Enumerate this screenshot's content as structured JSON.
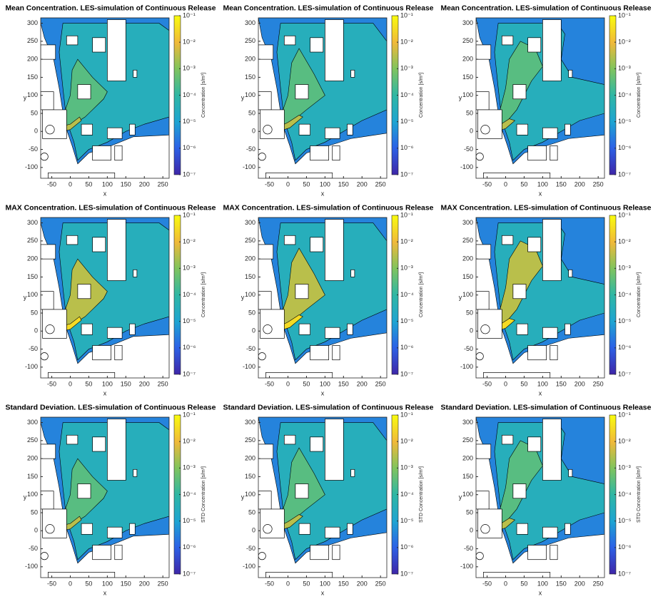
{
  "chart_data": [
    {
      "type": "contour",
      "title": "Mean Concentration. LES-simulation of Continuous Release",
      "xlabel": "x",
      "ylabel": "y",
      "xlim": [
        -80,
        267
      ],
      "ylim": [
        -130,
        315
      ],
      "xticks": [
        -50,
        0,
        50,
        100,
        150,
        200,
        250
      ],
      "yticks": [
        -100,
        -50,
        0,
        50,
        100,
        150,
        200,
        250,
        300
      ],
      "colorbar": {
        "label": "Concentration [s/m³]",
        "lim": [
          1e-07,
          0.1
        ],
        "log": true,
        "ticks": [
          {
            "value": 1e-07,
            "label": "10⁻⁷"
          },
          {
            "value": 1e-06,
            "label": "10⁻⁶"
          },
          {
            "value": 1e-05,
            "label": "10⁻⁵"
          },
          {
            "value": 0.0001,
            "label": "10⁻⁴"
          },
          {
            "value": 0.001,
            "label": "10⁻³"
          },
          {
            "value": 0.01,
            "label": "10⁻²"
          },
          {
            "value": 0.1,
            "label": "10⁻¹"
          }
        ]
      }
    },
    {
      "type": "contour",
      "title": "Mean Concentration. LES-simulation of Continuous Release",
      "xlabel": "x",
      "ylabel": "y",
      "xlim": [
        -80,
        267
      ],
      "ylim": [
        -130,
        315
      ],
      "xticks": [
        -50,
        0,
        50,
        100,
        150,
        200,
        250
      ],
      "yticks": [
        -100,
        -50,
        0,
        50,
        100,
        150,
        200,
        250,
        300
      ],
      "colorbar": {
        "label": "Concentration [s/m³]",
        "lim": [
          1e-07,
          0.1
        ],
        "log": true,
        "ticks": [
          {
            "value": 1e-07,
            "label": "10⁻⁷"
          },
          {
            "value": 1e-06,
            "label": "10⁻⁶"
          },
          {
            "value": 1e-05,
            "label": "10⁻⁵"
          },
          {
            "value": 0.0001,
            "label": "10⁻⁴"
          },
          {
            "value": 0.001,
            "label": "10⁻³"
          },
          {
            "value": 0.01,
            "label": "10⁻²"
          },
          {
            "value": 0.1,
            "label": "10⁻¹"
          }
        ]
      }
    },
    {
      "type": "contour",
      "title": "Mean Concentration. LES-simulation of Continuous Release",
      "xlabel": "x",
      "ylabel": "y",
      "xlim": [
        -80,
        267
      ],
      "ylim": [
        -130,
        315
      ],
      "xticks": [
        -50,
        0,
        50,
        100,
        150,
        200,
        250
      ],
      "yticks": [
        -100,
        -50,
        0,
        50,
        100,
        150,
        200,
        250,
        300
      ],
      "colorbar": {
        "label": "Concentration [s/m³]",
        "lim": [
          1e-07,
          0.1
        ],
        "log": true,
        "ticks": [
          {
            "value": 1e-07,
            "label": "10⁻⁷"
          },
          {
            "value": 1e-06,
            "label": "10⁻⁶"
          },
          {
            "value": 1e-05,
            "label": "10⁻⁵"
          },
          {
            "value": 0.0001,
            "label": "10⁻⁴"
          },
          {
            "value": 0.001,
            "label": "10⁻³"
          },
          {
            "value": 0.01,
            "label": "10⁻²"
          },
          {
            "value": 0.1,
            "label": "10⁻¹"
          }
        ]
      }
    },
    {
      "type": "contour",
      "title": "MAX Concentration. LES-simulation of Continuous Release",
      "xlabel": "x",
      "ylabel": "y",
      "xlim": [
        -80,
        267
      ],
      "ylim": [
        -130,
        315
      ],
      "xticks": [
        -50,
        0,
        50,
        100,
        150,
        200,
        250
      ],
      "yticks": [
        -100,
        -50,
        0,
        50,
        100,
        150,
        200,
        250,
        300
      ],
      "colorbar": {
        "label": "Concentration [s/m³]",
        "lim": [
          1e-07,
          0.1
        ],
        "log": true,
        "ticks": [
          {
            "value": 1e-07,
            "label": "10⁻⁷"
          },
          {
            "value": 1e-06,
            "label": "10⁻⁶"
          },
          {
            "value": 1e-05,
            "label": "10⁻⁵"
          },
          {
            "value": 0.0001,
            "label": "10⁻⁴"
          },
          {
            "value": 0.001,
            "label": "10⁻³"
          },
          {
            "value": 0.01,
            "label": "10⁻²"
          },
          {
            "value": 0.1,
            "label": "10⁻¹"
          }
        ]
      }
    },
    {
      "type": "contour",
      "title": "MAX Concentration. LES-simulation of Continuous Release",
      "xlabel": "x",
      "ylabel": "y",
      "xlim": [
        -80,
        267
      ],
      "ylim": [
        -130,
        315
      ],
      "xticks": [
        -50,
        0,
        50,
        100,
        150,
        200,
        250
      ],
      "yticks": [
        -100,
        -50,
        0,
        50,
        100,
        150,
        200,
        250,
        300
      ],
      "colorbar": {
        "label": "Concentration [s/m³]",
        "lim": [
          1e-07,
          0.1
        ],
        "log": true,
        "ticks": [
          {
            "value": 1e-07,
            "label": "10⁻⁷"
          },
          {
            "value": 1e-06,
            "label": "10⁻⁶"
          },
          {
            "value": 1e-05,
            "label": "10⁻⁵"
          },
          {
            "value": 0.0001,
            "label": "10⁻⁴"
          },
          {
            "value": 0.001,
            "label": "10⁻³"
          },
          {
            "value": 0.01,
            "label": "10⁻²"
          },
          {
            "value": 0.1,
            "label": "10⁻¹"
          }
        ]
      }
    },
    {
      "type": "contour",
      "title": "MAX Concentration. LES-simulation of Continuous Release",
      "xlabel": "x",
      "ylabel": "y",
      "xlim": [
        -80,
        267
      ],
      "ylim": [
        -130,
        315
      ],
      "xticks": [
        -50,
        0,
        50,
        100,
        150,
        200,
        250
      ],
      "yticks": [
        -100,
        -50,
        0,
        50,
        100,
        150,
        200,
        250,
        300
      ],
      "colorbar": {
        "label": "Concentration [s/m³]",
        "lim": [
          1e-07,
          0.1
        ],
        "log": true,
        "ticks": [
          {
            "value": 1e-07,
            "label": "10⁻⁷"
          },
          {
            "value": 1e-06,
            "label": "10⁻⁶"
          },
          {
            "value": 1e-05,
            "label": "10⁻⁵"
          },
          {
            "value": 0.0001,
            "label": "10⁻⁴"
          },
          {
            "value": 0.001,
            "label": "10⁻³"
          },
          {
            "value": 0.01,
            "label": "10⁻²"
          },
          {
            "value": 0.1,
            "label": "10⁻¹"
          }
        ]
      }
    },
    {
      "type": "contour",
      "title": "Standard Deviation. LES-simulation of Continuous Release",
      "xlabel": "x",
      "ylabel": "y",
      "xlim": [
        -80,
        267
      ],
      "ylim": [
        -130,
        315
      ],
      "xticks": [
        -50,
        0,
        50,
        100,
        150,
        200,
        250
      ],
      "yticks": [
        -100,
        -50,
        0,
        50,
        100,
        150,
        200,
        250,
        300
      ],
      "colorbar": {
        "label": "STD Concentration [s/m³]",
        "lim": [
          1e-07,
          0.1
        ],
        "log": true,
        "ticks": [
          {
            "value": 1e-07,
            "label": "10⁻⁷"
          },
          {
            "value": 1e-06,
            "label": "10⁻⁶"
          },
          {
            "value": 1e-05,
            "label": "10⁻⁵"
          },
          {
            "value": 0.0001,
            "label": "10⁻⁴"
          },
          {
            "value": 0.001,
            "label": "10⁻³"
          },
          {
            "value": 0.01,
            "label": "10⁻²"
          },
          {
            "value": 0.1,
            "label": "10⁻¹"
          }
        ]
      }
    },
    {
      "type": "contour",
      "title": "Standard Deviation. LES-simulation of Continuous Release",
      "xlabel": "x",
      "ylabel": "y",
      "xlim": [
        -80,
        267
      ],
      "ylim": [
        -130,
        315
      ],
      "xticks": [
        -50,
        0,
        50,
        100,
        150,
        200,
        250
      ],
      "yticks": [
        -100,
        -50,
        0,
        50,
        100,
        150,
        200,
        250,
        300
      ],
      "colorbar": {
        "label": "STD Concentration [s/m³]",
        "lim": [
          1e-07,
          0.1
        ],
        "log": true,
        "ticks": [
          {
            "value": 1e-07,
            "label": "10⁻⁷"
          },
          {
            "value": 1e-06,
            "label": "10⁻⁶"
          },
          {
            "value": 1e-05,
            "label": "10⁻⁵"
          },
          {
            "value": 0.0001,
            "label": "10⁻⁴"
          },
          {
            "value": 0.001,
            "label": "10⁻³"
          },
          {
            "value": 0.01,
            "label": "10⁻²"
          },
          {
            "value": 0.1,
            "label": "10⁻¹"
          }
        ]
      }
    },
    {
      "type": "contour",
      "title": "Standard Deviation. LES-simulation of Continuous Release",
      "xlabel": "x",
      "ylabel": "y",
      "xlim": [
        -80,
        267
      ],
      "ylim": [
        -130,
        315
      ],
      "xticks": [
        -50,
        0,
        50,
        100,
        150,
        200,
        250
      ],
      "yticks": [
        -100,
        -50,
        0,
        50,
        100,
        150,
        200,
        250,
        300
      ],
      "colorbar": {
        "label": "STD Concentration [s/m³]",
        "lim": [
          1e-07,
          0.1
        ],
        "log": true,
        "ticks": [
          {
            "value": 1e-07,
            "label": "10⁻⁷"
          },
          {
            "value": 1e-06,
            "label": "10⁻⁶"
          },
          {
            "value": 1e-05,
            "label": "10⁻⁵"
          },
          {
            "value": 0.0001,
            "label": "10⁻⁴"
          },
          {
            "value": 0.001,
            "label": "10⁻³"
          },
          {
            "value": 0.01,
            "label": "10⁻²"
          },
          {
            "value": 0.1,
            "label": "10⁻¹"
          }
        ]
      }
    }
  ]
}
